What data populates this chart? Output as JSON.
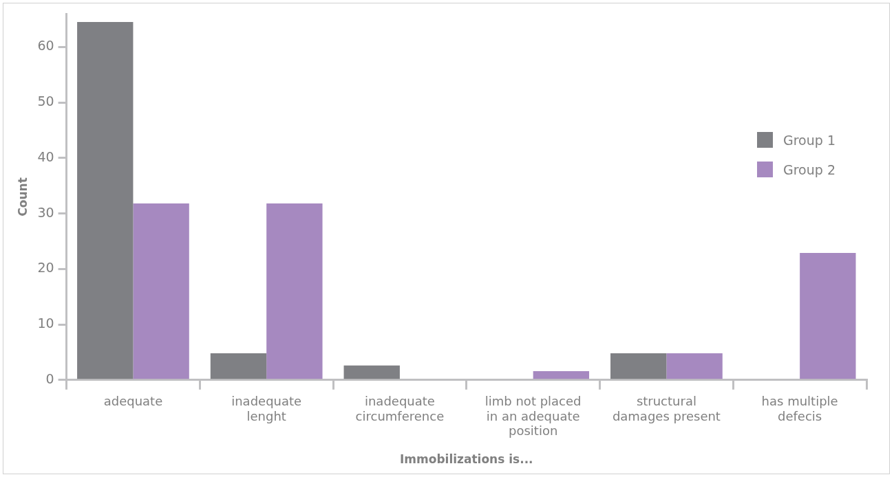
{
  "chart_data": {
    "type": "bar",
    "xlabel": "Immobilizations is...",
    "ylabel": "Count",
    "categories": [
      "adequate",
      "inadequate lenght",
      "inadequate circumference",
      "limb not placed in an adequate position",
      "structural damages present",
      "has multiple defecis"
    ],
    "series": [
      {
        "name": "Group 1",
        "color": "#7f8084",
        "values": [
          64.5,
          4.8,
          2.6,
          0,
          4.8,
          0
        ]
      },
      {
        "name": "Group 2",
        "color": "#a689c0",
        "values": [
          31.8,
          31.8,
          0,
          1.6,
          4.8,
          22.9
        ]
      }
    ],
    "ylim": [
      0,
      66
    ],
    "yticks": [
      0,
      10,
      20,
      30,
      40,
      50,
      60
    ],
    "grid": false,
    "legend": "right"
  }
}
